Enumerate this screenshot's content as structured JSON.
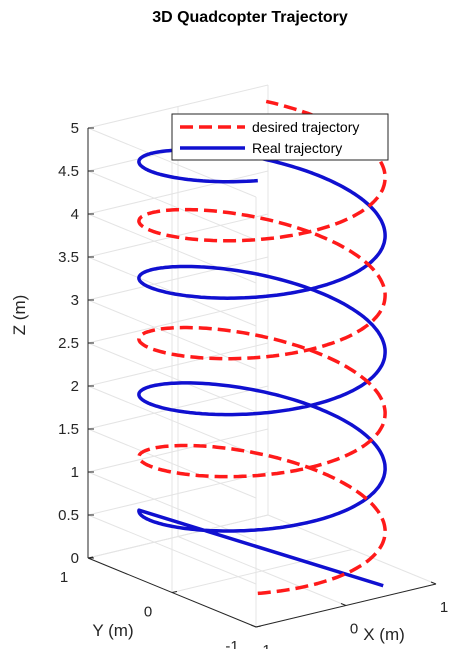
{
  "chart_data": {
    "type": "line3d",
    "title": "3D Quadcopter Trajectory",
    "xlabel": "X (m)",
    "ylabel": "Y (m)",
    "zlabel": "Z (m)",
    "xlim": [
      -1,
      1
    ],
    "ylim": [
      -1,
      1
    ],
    "zlim": [
      0,
      5
    ],
    "xticks": [
      "-1",
      "0",
      "1"
    ],
    "yticks": [
      "-1",
      "0",
      "1"
    ],
    "zticks": [
      "0",
      "0.5",
      "1",
      "1.5",
      "2",
      "2.5",
      "3",
      "3.5",
      "4",
      "4.5",
      "5"
    ],
    "grid": true,
    "legend_position": "top-right",
    "series": [
      {
        "name": "desired trajectory",
        "color": "#ff1a1a",
        "style": "dashed",
        "helix": {
          "radius": 1,
          "z_start": 0.2,
          "z_end": 5.0,
          "turns": 3.5,
          "phase_start_deg": 225
        }
      },
      {
        "name": "Real trajectory",
        "color": "#1010d0",
        "style": "solid",
        "helix": {
          "radius": 1,
          "z_start": 0.6,
          "z_end": 5.0,
          "turns": 3.25,
          "phase_start_deg": 135
        },
        "start_point": {
          "x": 0.6,
          "y": -0.8,
          "z": 0.0
        }
      }
    ]
  }
}
